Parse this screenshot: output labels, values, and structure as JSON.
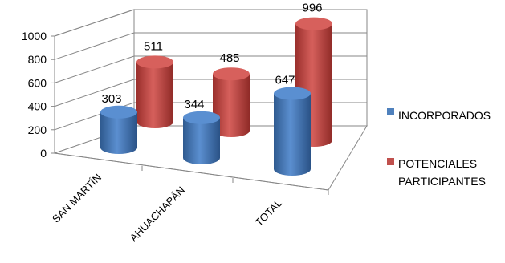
{
  "chart_data": {
    "type": "bar",
    "style": "3d-cylinder",
    "categories": [
      "SAN MARTÍN",
      "AHUACHAPÁN",
      "TOTAL"
    ],
    "series": [
      {
        "name": "INCORPORADOS",
        "color": "#4f81bd",
        "values": [
          303,
          344,
          647
        ]
      },
      {
        "name": "POTENCIALES PARTICIPANTES",
        "color": "#c0504d",
        "values": [
          511,
          485,
          996
        ]
      }
    ],
    "y_ticks": [
      "0",
      "200",
      "400",
      "600",
      "800",
      "1000"
    ],
    "ylim": [
      0,
      1000
    ],
    "grid": true,
    "legend": "right",
    "title": "",
    "xlabel": "",
    "ylabel": ""
  },
  "legend": {
    "series_1_lines": [
      "INCORPORADOS"
    ],
    "series_2_lines": [
      "POTENCIALES",
      "PARTICIPANTES"
    ]
  }
}
